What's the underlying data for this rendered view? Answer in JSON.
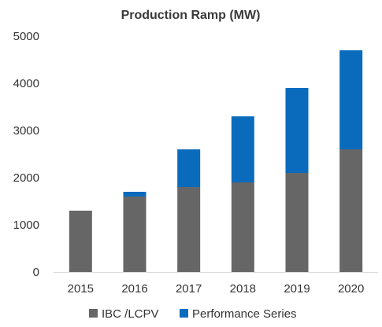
{
  "chart_data": {
    "type": "bar",
    "stacked": true,
    "title": "Production Ramp (MW)",
    "xlabel": "",
    "ylabel": "",
    "ylim": [
      0,
      5000
    ],
    "yticks": [
      "0",
      "1000",
      "2000",
      "3000",
      "4000",
      "5000"
    ],
    "categories": [
      "2015",
      "2016",
      "2017",
      "2018",
      "2019",
      "2020"
    ],
    "series": [
      {
        "name": "IBC /LCPV",
        "color": "#666666",
        "values": [
          1300,
          1600,
          1800,
          1900,
          2100,
          2600
        ]
      },
      {
        "name": "Performance Series",
        "color": "#0a6bbd",
        "values": [
          0,
          100,
          800,
          1400,
          1800,
          2100
        ]
      }
    ],
    "grid": false,
    "legend": "bottom"
  }
}
